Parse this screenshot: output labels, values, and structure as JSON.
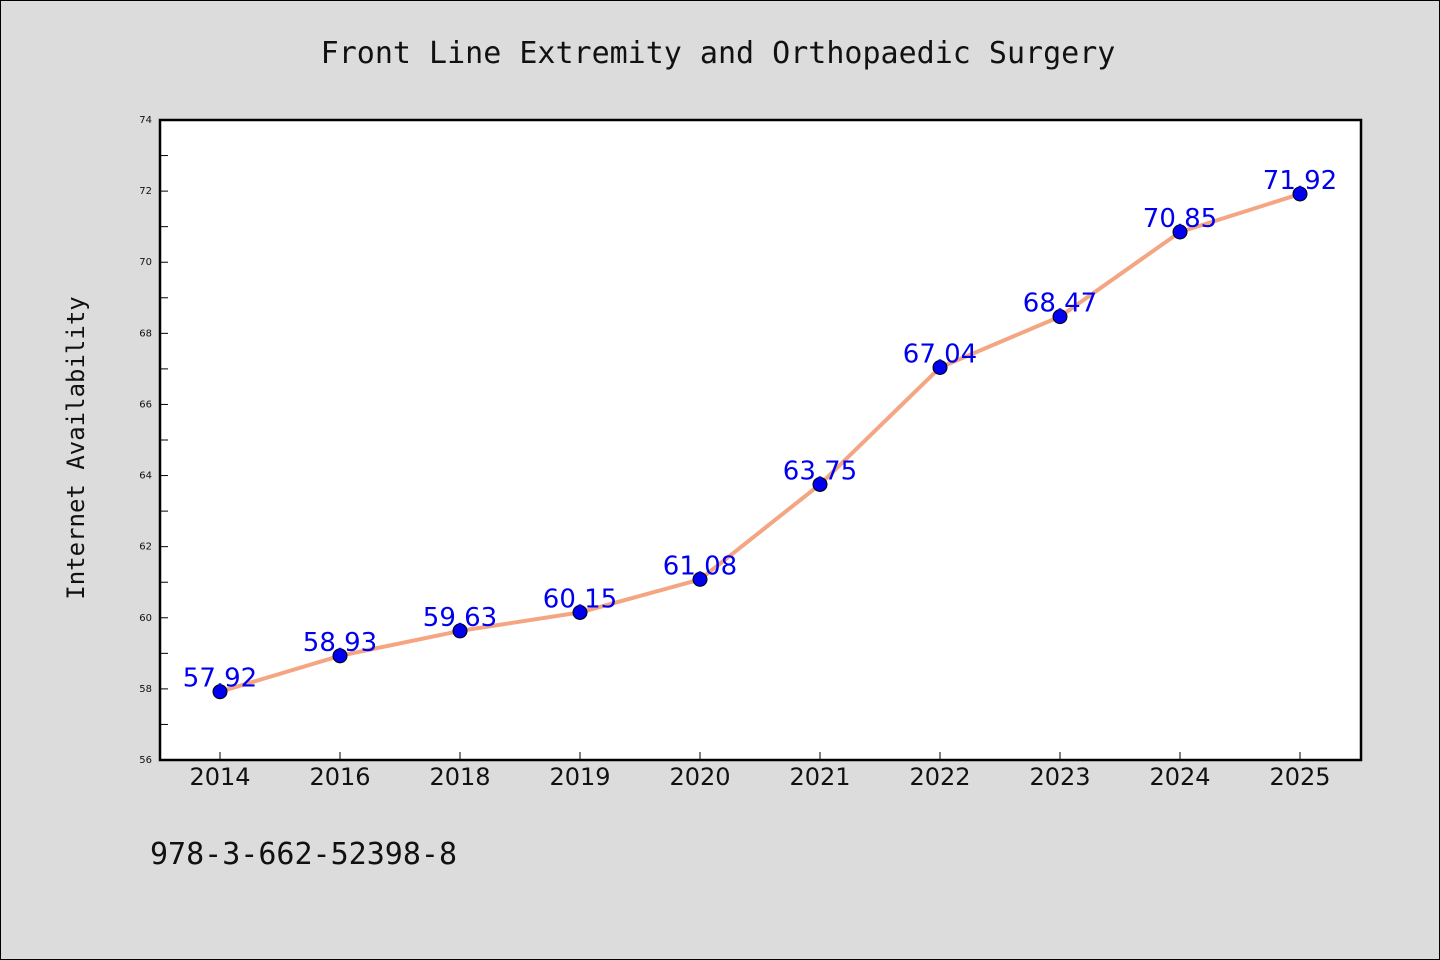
{
  "chart_data": {
    "type": "line",
    "title": "Front Line Extremity and Orthopaedic Surgery",
    "ylabel": "Internet Availability",
    "xlabel": "",
    "categories": [
      "2014",
      "2016",
      "2018",
      "2019",
      "2020",
      "2021",
      "2022",
      "2023",
      "2024",
      "2025"
    ],
    "values": [
      57.92,
      58.93,
      59.63,
      60.15,
      61.08,
      63.75,
      67.04,
      68.47,
      70.85,
      71.92
    ],
    "data_labels": [
      "57.92",
      "58.93",
      "59.63",
      "60.15",
      "61.08",
      "63.75",
      "67.04",
      "68.47",
      "70.85",
      "71.92"
    ],
    "ylim": [
      56,
      74
    ],
    "yticks": [
      "56",
      "58",
      "60",
      "62",
      "64",
      "66",
      "68",
      "70",
      "72",
      "74"
    ],
    "grid": false,
    "legend": "none",
    "line_color": "#f4a582",
    "marker_color": "#0000ee",
    "label_color": "#0000ee"
  },
  "footer": {
    "isbn": "978-3-662-52398-8"
  }
}
